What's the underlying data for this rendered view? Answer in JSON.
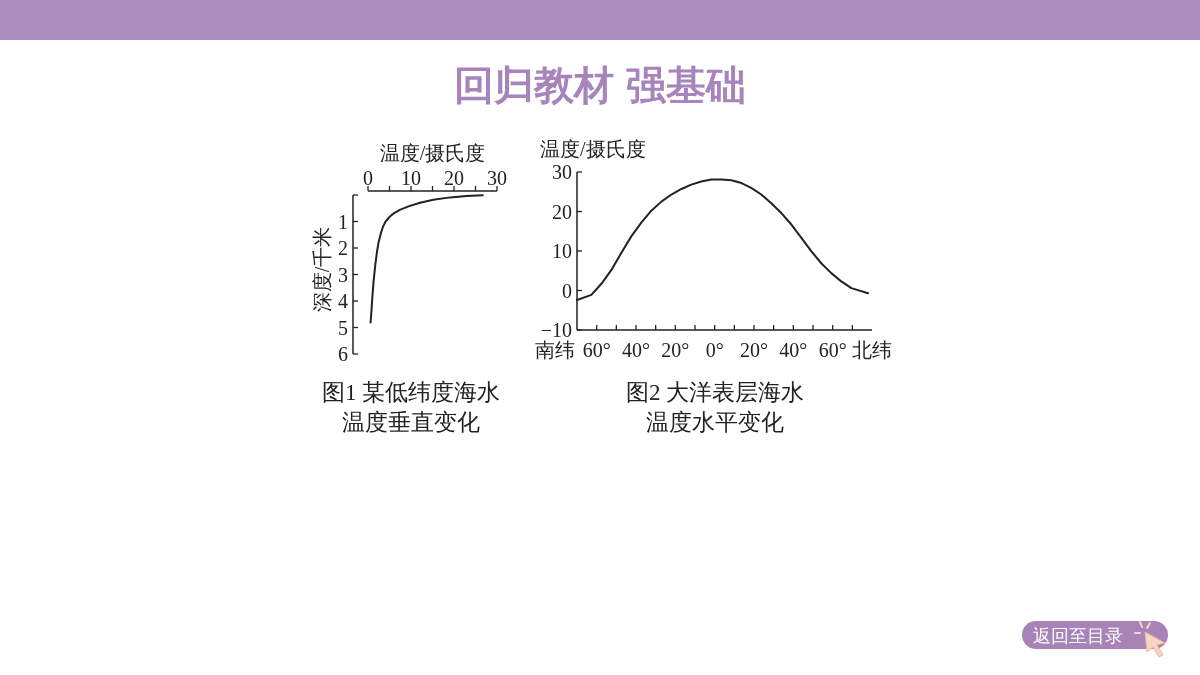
{
  "chart_data": [
    {
      "type": "other",
      "title": "回归教材 强基础",
      "annotations": [
        "返回至目录"
      ]
    },
    {
      "type": "line",
      "title": "图1 某低纬度海水温度垂直变化",
      "xlabel": "温度/摄氏度",
      "ylabel": "深度/千米",
      "xlim": [
        0,
        30
      ],
      "xticks": [
        0,
        {
          "value": 5,
          "label": null
        },
        10,
        {
          "value": 15,
          "label": null
        },
        20,
        {
          "value": 25,
          "label": null
        },
        30
      ],
      "ylim": [
        6,
        0
      ],
      "yticks": [
        {
          "value": 0,
          "label": null
        },
        1,
        2,
        3,
        4,
        5,
        6
      ],
      "color": "#222222",
      "x": [
        26.7,
        23.0,
        19.1,
        15.2,
        12.1,
        9.4,
        7.4,
        6.0,
        4.9,
        4.1,
        3.5,
        3.0,
        2.5,
        2.1,
        1.7,
        1.3,
        1.0,
        0.8,
        0.6
      ],
      "values": [
        0.01,
        0.04,
        0.09,
        0.18,
        0.29,
        0.43,
        0.56,
        0.69,
        0.84,
        1.0,
        1.19,
        1.44,
        1.75,
        2.13,
        2.63,
        3.25,
        3.88,
        4.38,
        4.81
      ]
    },
    {
      "type": "line",
      "title": "图2 大洋表层海水温度水平变化",
      "ylabel": "温度/摄氏度",
      "xlim": [
        -70,
        80
      ],
      "xticks": [
        {
          "value": -60,
          "label": "60°"
        },
        {
          "value": -50,
          "label": null
        },
        {
          "value": -40,
          "label": "40°"
        },
        {
          "value": -30,
          "label": null
        },
        {
          "value": -20,
          "label": "20°"
        },
        {
          "value": -10,
          "label": null
        },
        {
          "value": 0,
          "label": "0°"
        },
        {
          "value": 10,
          "label": null
        },
        {
          "value": 20,
          "label": "20°"
        },
        {
          "value": 30,
          "label": null
        },
        {
          "value": 40,
          "label": "40°"
        },
        {
          "value": 50,
          "label": null
        },
        {
          "value": 60,
          "label": "60°"
        },
        {
          "value": 70,
          "label": null
        }
      ],
      "ylim": [
        -10,
        30
      ],
      "yticks": [
        {
          "value": -10,
          "label": "−10"
        },
        0,
        10,
        20,
        30
      ],
      "color": "#222222",
      "x": [
        -70,
        -62.7,
        -57.6,
        -52.5,
        -47.5,
        -42.4,
        -37.3,
        -32.2,
        -27.1,
        -22,
        -16.9,
        -11.9,
        -6.8,
        -1.7,
        3.4,
        8.5,
        13.6,
        18.6,
        23.7,
        28.8,
        33.9,
        39,
        44.1,
        49.2,
        54.2,
        59.3,
        64.4,
        69.5,
        78
      ],
      "values": [
        -2.4,
        -1.1,
        1.7,
        5.2,
        9.5,
        13.7,
        17.2,
        20.2,
        22.5,
        24.3,
        25.7,
        26.8,
        27.6,
        28.1,
        28.1,
        27.9,
        27.2,
        26,
        24.3,
        22.1,
        19.6,
        16.7,
        13.3,
        9.9,
        6.9,
        4.4,
        2.3,
        0.6,
        -0.7
      ],
      "annotations": [
        "南纬",
        "北纬"
      ]
    }
  ]
}
